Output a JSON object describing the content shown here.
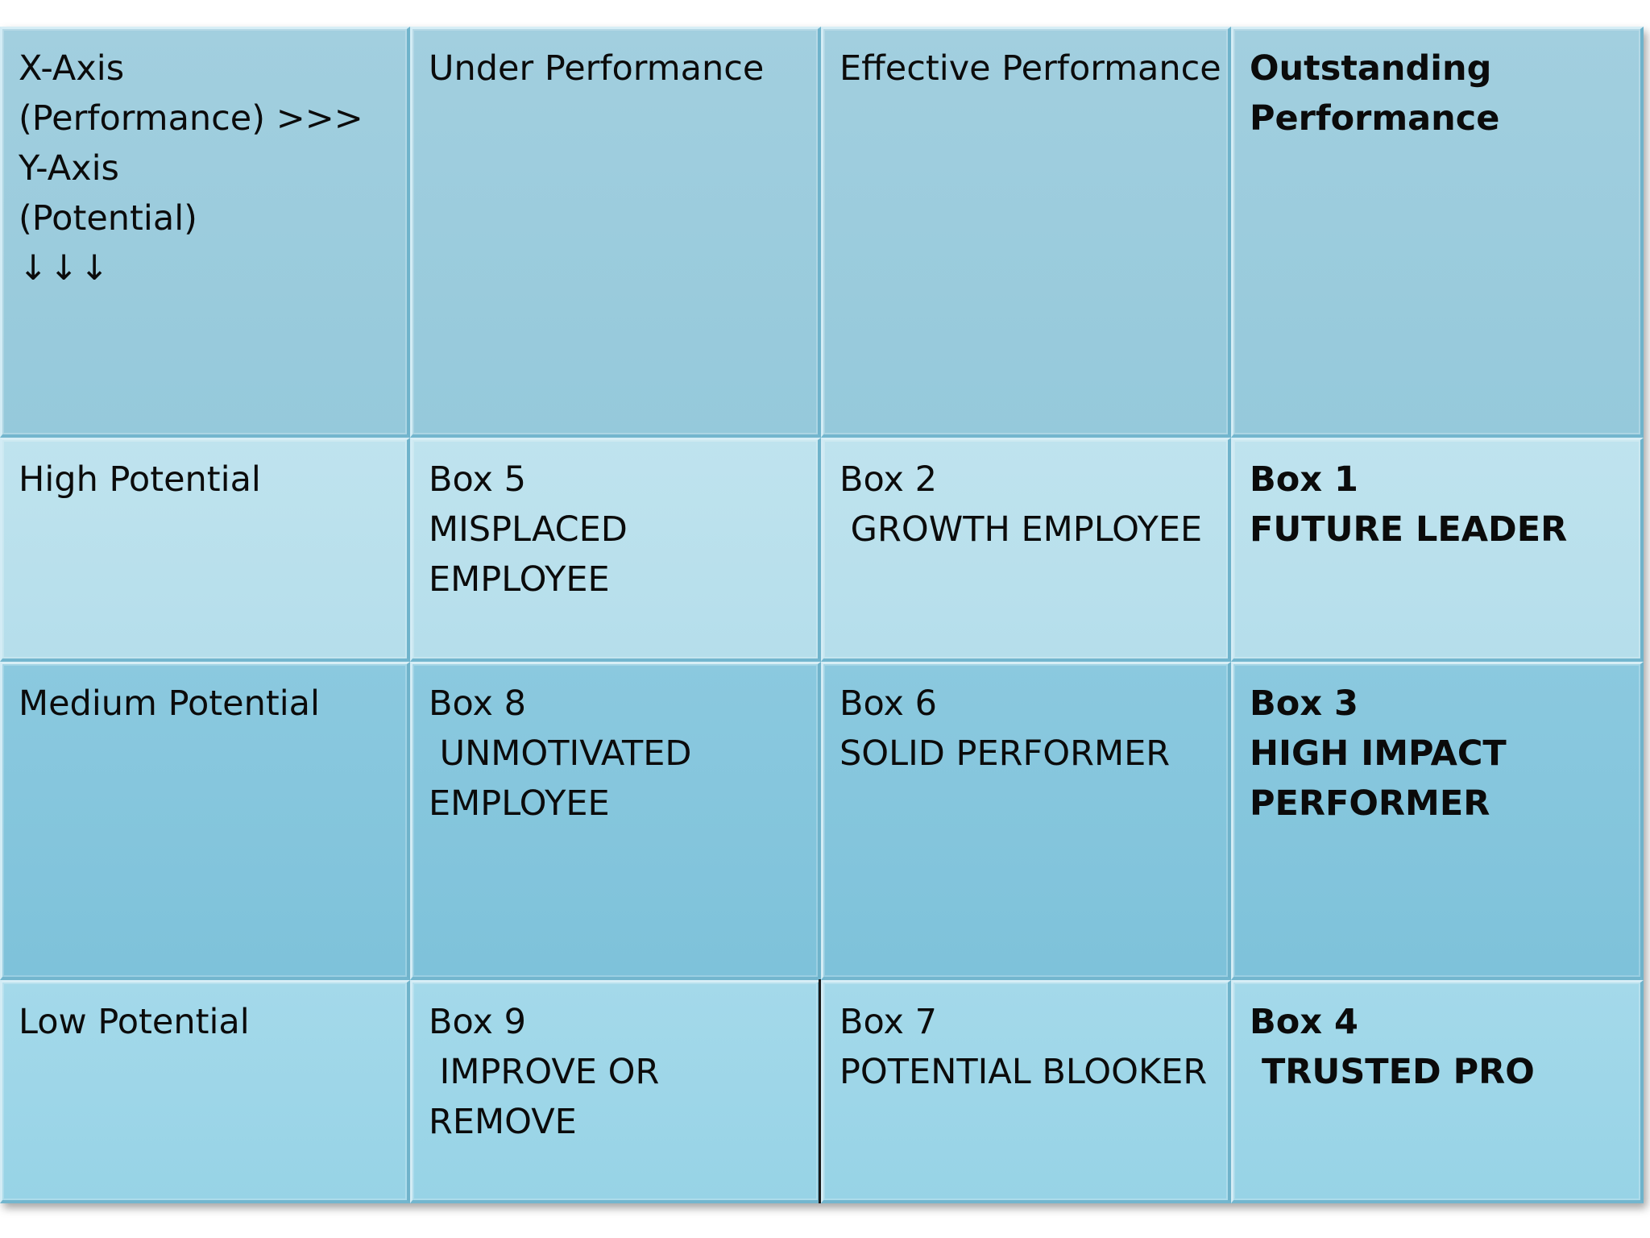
{
  "corner": {
    "line1": "X-Axis",
    "line2": "(Performance) >>>",
    "line3": "Y-Axis",
    "line4": "(Potential)",
    "arrows": "↓↓↓"
  },
  "columns": {
    "under": "Under Performance",
    "effective": "Effective Performance",
    "outstanding_1": "Outstanding",
    "outstanding_2": "Performance"
  },
  "rows": {
    "high": "High Potential",
    "medium": "Medium Potential",
    "low": "Low Potential"
  },
  "boxes": {
    "box5": {
      "num": "Box 5",
      "l1": "MISPLACED",
      "l2": "EMPLOYEE"
    },
    "box2": {
      "num": "Box 2",
      "l1": " GROWTH EMPLOYEE"
    },
    "box1": {
      "num": "Box 1",
      "l1": "FUTURE LEADER"
    },
    "box8": {
      "num": "Box 8",
      "l1": " UNMOTIVATED",
      "l2": "EMPLOYEE"
    },
    "box6": {
      "num": "Box 6",
      "l1": "SOLID PERFORMER"
    },
    "box3": {
      "num": "Box 3",
      "l1": "HIGH IMPACT",
      "l2": "PERFORMER"
    },
    "box9": {
      "num": "Box 9",
      "l1": " IMPROVE OR",
      "l2": "REMOVE"
    },
    "box7": {
      "num": "Box 7",
      "l1": "POTENTIAL BLOOKER"
    },
    "box4": {
      "num": "Box 4",
      "l1": " TRUSTED PRO"
    }
  }
}
